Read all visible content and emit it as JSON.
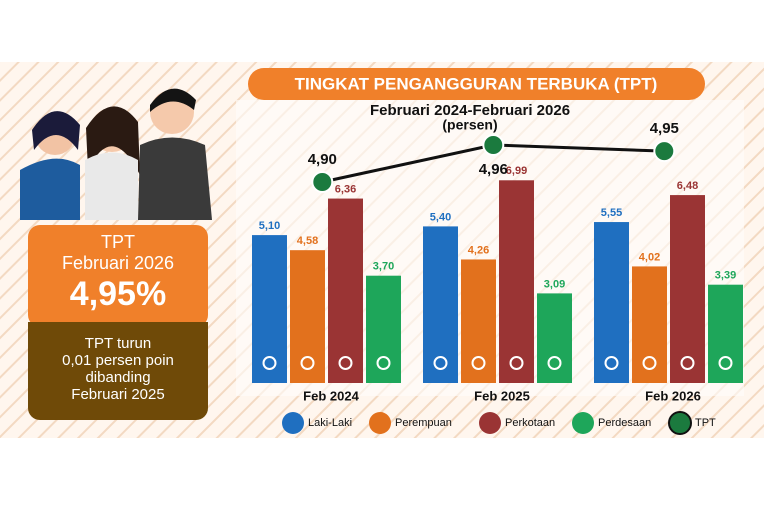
{
  "chart_data": {
    "type": "bar",
    "title": "TINGKAT PENGANGGURAN TERBUKA (TPT)",
    "subtitle": "Februari 2024-Februari 2026",
    "unit": "(persen)",
    "categories": [
      "Feb 2024",
      "Feb 2025",
      "Feb 2026"
    ],
    "series": [
      {
        "name": "Laki-Laki",
        "color": "#1f6fc0",
        "values": [
          5.1,
          5.4,
          5.55
        ],
        "value_labels": [
          "5,10",
          "5,40",
          "5,55"
        ]
      },
      {
        "name": "Perempuan",
        "color": "#e2711d",
        "values": [
          4.58,
          4.26,
          4.02
        ],
        "value_labels": [
          "4,58",
          "4,26",
          "4,02"
        ]
      },
      {
        "name": "Perkotaan",
        "color": "#9a3434",
        "values": [
          6.36,
          6.99,
          6.48
        ],
        "value_labels": [
          "6,36",
          "6,99",
          "6,48"
        ]
      },
      {
        "name": "Perdesaan",
        "color": "#1ea65a",
        "values": [
          3.7,
          3.09,
          3.39
        ],
        "value_labels": [
          "3,70",
          "3,09",
          "3,39"
        ]
      },
      {
        "name": "TPT",
        "color": "#111111",
        "type": "line",
        "axis": "y2",
        "values": [
          4.9,
          4.96,
          4.95
        ],
        "value_labels": [
          "4,90",
          "4,96",
          "4,95"
        ]
      }
    ]
  },
  "panel": {
    "label": "TPT",
    "period": "Februari 2026",
    "value": "4,95%",
    "note": [
      "TPT turun",
      "0,01 persen poin",
      "dibanding",
      "Februari 2025"
    ]
  }
}
